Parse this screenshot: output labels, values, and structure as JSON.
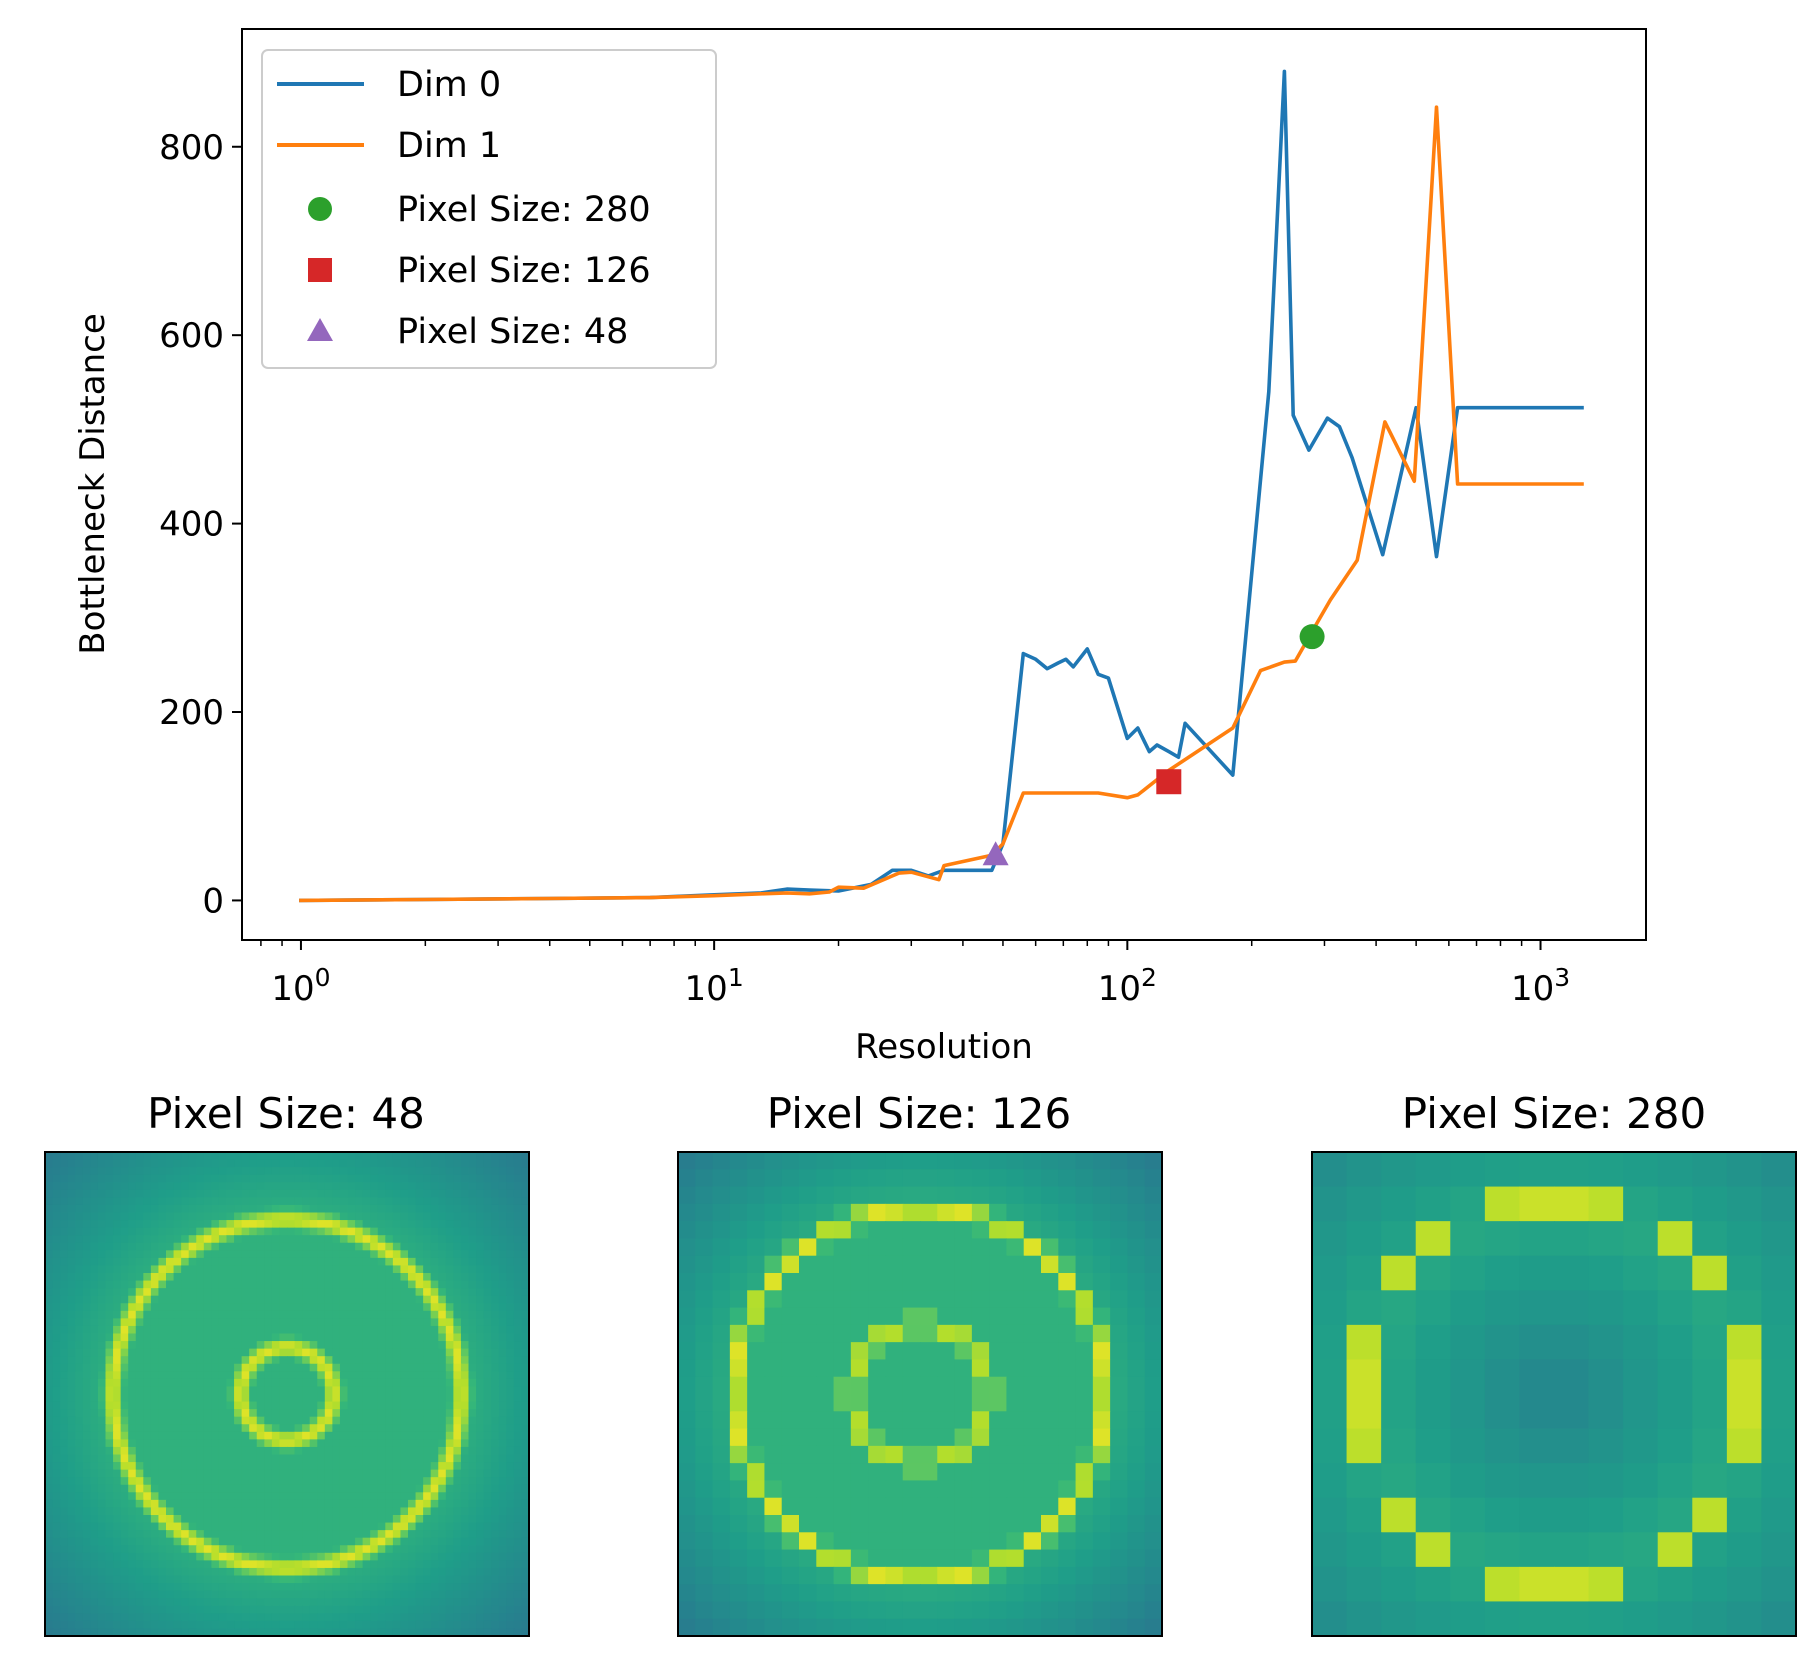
{
  "colors": {
    "dim0": "#1f77b4",
    "dim1": "#ff7f0e",
    "marker280": "#2ca02c",
    "marker126": "#d62728",
    "marker48": "#9467bd"
  },
  "chart_data": [
    {
      "type": "line",
      "xlabel": "Resolution",
      "ylabel": "Bottleneck Distance",
      "xscale": "log",
      "xlim": [
        0.72,
        1800
      ],
      "ylim": [
        -42,
        925
      ],
      "grid": false,
      "legend_position": "top-left",
      "x_ticks": [
        {
          "base": "10",
          "exp": "0",
          "value": 1
        },
        {
          "base": "10",
          "exp": "1",
          "value": 10
        },
        {
          "base": "10",
          "exp": "2",
          "value": 100
        },
        {
          "base": "10",
          "exp": "3",
          "value": 1000
        }
      ],
      "y_ticks": [
        {
          "label": "0",
          "value": 0
        },
        {
          "label": "200",
          "value": 200
        },
        {
          "label": "400",
          "value": 400
        },
        {
          "label": "600",
          "value": 600
        },
        {
          "label": "800",
          "value": 800
        }
      ],
      "series": [
        {
          "name": "Dim 0",
          "points": [
            [
              1,
              0
            ],
            [
              2,
              1
            ],
            [
              4,
              2
            ],
            [
              7,
              3
            ],
            [
              10,
              6
            ],
            [
              13,
              8
            ],
            [
              15,
              12
            ],
            [
              17,
              11
            ],
            [
              20,
              10
            ],
            [
              24,
              17
            ],
            [
              27,
              32
            ],
            [
              30,
              32
            ],
            [
              33,
              26
            ],
            [
              36,
              32
            ],
            [
              40,
              32
            ],
            [
              47,
              32
            ],
            [
              50,
              60
            ],
            [
              56,
              262
            ],
            [
              60,
              256
            ],
            [
              64,
              246
            ],
            [
              68,
              252
            ],
            [
              71,
              256
            ],
            [
              74,
              248
            ],
            [
              80,
              267
            ],
            [
              85,
              240
            ],
            [
              90,
              236
            ],
            [
              100,
              172
            ],
            [
              106,
              183
            ],
            [
              113,
              158
            ],
            [
              118,
              165
            ],
            [
              126,
              158
            ],
            [
              133,
              152
            ],
            [
              138,
              188
            ],
            [
              152,
              168
            ],
            [
              180,
              133
            ],
            [
              220,
              540
            ],
            [
              240,
              880
            ],
            [
              252,
              515
            ],
            [
              275,
              478
            ],
            [
              305,
              512
            ],
            [
              326,
              503
            ],
            [
              350,
              470
            ],
            [
              415,
              367
            ],
            [
              500,
              523
            ],
            [
              560,
              365
            ],
            [
              630,
              523
            ],
            [
              1260,
              523
            ]
          ]
        },
        {
          "name": "Dim 1",
          "points": [
            [
              1,
              0
            ],
            [
              2,
              1
            ],
            [
              4,
              2
            ],
            [
              7,
              3
            ],
            [
              10,
              5
            ],
            [
              13,
              7
            ],
            [
              15,
              8
            ],
            [
              17,
              7
            ],
            [
              19,
              9
            ],
            [
              20,
              14
            ],
            [
              23,
              13
            ],
            [
              28,
              29
            ],
            [
              30,
              30
            ],
            [
              35,
              22
            ],
            [
              36,
              37
            ],
            [
              47,
              48
            ],
            [
              50,
              60
            ],
            [
              56,
              114
            ],
            [
              85,
              114
            ],
            [
              100,
              109
            ],
            [
              106,
              112
            ],
            [
              126,
              138
            ],
            [
              180,
              183
            ],
            [
              210,
              244
            ],
            [
              240,
              253
            ],
            [
              255,
              254
            ],
            [
              290,
              297
            ],
            [
              310,
              319
            ],
            [
              360,
              361
            ],
            [
              420,
              508
            ],
            [
              495,
              445
            ],
            [
              560,
              842
            ],
            [
              630,
              442
            ],
            [
              1260,
              442
            ]
          ]
        }
      ],
      "markers": [
        {
          "name": "Pixel Size: 280",
          "shape": "circle",
          "x": 280,
          "y": 280
        },
        {
          "name": "Pixel Size: 126",
          "shape": "square",
          "x": 126,
          "y": 126
        },
        {
          "name": "Pixel Size: 48",
          "shape": "triangle",
          "x": 48,
          "y": 48
        }
      ]
    },
    {
      "type": "heatmap",
      "title": "Pixel Size: 48",
      "grid_size": 64,
      "rings": [
        0.12,
        0.45
      ],
      "colormap": "viridis"
    },
    {
      "type": "heatmap",
      "title": "Pixel Size: 126",
      "grid_size": 28,
      "rings": [
        0.18,
        0.48
      ],
      "colormap": "viridis"
    },
    {
      "type": "heatmap",
      "title": "Pixel Size: 280",
      "grid_size": 14,
      "rings": [
        0.5
      ],
      "colormap": "viridis"
    }
  ]
}
